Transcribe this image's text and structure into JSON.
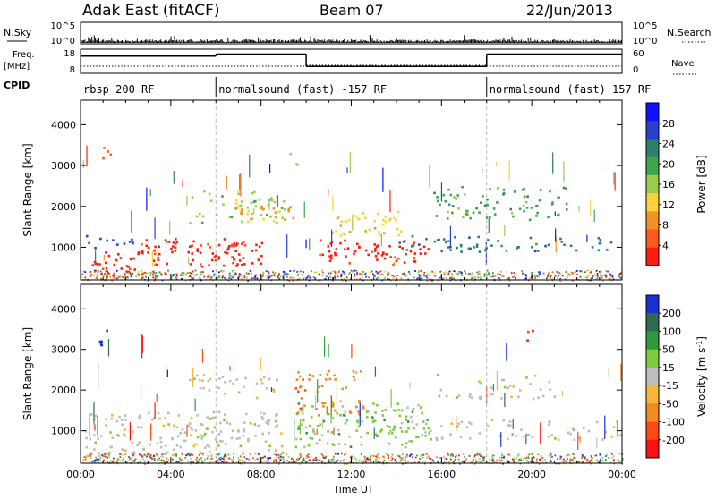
{
  "header": {
    "title": "Adak East (fitACF)",
    "beam": "Beam 07",
    "date": "22/Jun/2013"
  },
  "nsky_panel": {
    "label": "N.Sky",
    "right_label": "N.Search",
    "ticks_left": [
      "10^5",
      "10^0"
    ],
    "ticks_right": [
      "10^5",
      "10^0"
    ]
  },
  "freq_panel": {
    "label_line1": "Freq.",
    "label_line2": "[MHz]",
    "right_label": "Nave",
    "ticks_left": [
      "18",
      "8"
    ],
    "ticks_right": [
      "60",
      "0"
    ],
    "segments": [
      {
        "start": 0,
        "end": 6,
        "level": 0.75
      },
      {
        "start": 6,
        "end": 10,
        "level": 0.85
      },
      {
        "start": 10,
        "end": 18,
        "level": 0.25
      },
      {
        "start": 18,
        "end": 24,
        "level": 0.85
      }
    ]
  },
  "cpid": {
    "label": "CPID",
    "segments": [
      {
        "start": 0,
        "label": "rbsp 200 RF"
      },
      {
        "start": 6,
        "label": "normalsound (fast) -157 RF"
      },
      {
        "start": 18,
        "label": "normalsound (fast) 157 RF"
      }
    ]
  },
  "chart_data": [
    {
      "type": "heatmap",
      "ylabel": "Slant Range [km]",
      "yticks": [
        "1000",
        "2000",
        "3000",
        "4000"
      ],
      "ylim": [
        200,
        4600
      ],
      "xlim_hours": [
        0,
        24
      ],
      "colorbar_label": "Power [dB]",
      "colorbar_ticks": [
        "4",
        "8",
        "12",
        "16",
        "20",
        "24",
        "28"
      ],
      "colorbar_colors": [
        "#1010ff",
        "#2a3fd0",
        "#2f7f6f",
        "#3fa54a",
        "#9ccc4f",
        "#ffd23a",
        "#f39224",
        "#ff5a1a",
        "#ff1c10"
      ]
    },
    {
      "type": "heatmap",
      "ylabel": "Slant Range [km]",
      "yticks": [
        "1000",
        "2000",
        "3000",
        "4000"
      ],
      "ylim": [
        200,
        4600
      ],
      "xlim_hours": [
        0,
        24
      ],
      "xlabel": "Time UT",
      "xticks": [
        "00:00",
        "04:00",
        "08:00",
        "12:00",
        "16:00",
        "20:00",
        "00:00"
      ],
      "colorbar_label": "Velocity [m s",
      "colorbar_label_sup": "-1",
      "colorbar_label_end": "]",
      "colorbar_ticks": [
        "200",
        "100",
        "50",
        "15",
        "-15",
        "-50",
        "-100",
        "-200"
      ],
      "colorbar_colors": [
        "#1a2fd4",
        "#2e6b50",
        "#2f9a3d",
        "#7ccc3e",
        "#bdbdbd",
        "#f6b63a",
        "#f18a22",
        "#ff4a12",
        "#ff1010"
      ]
    }
  ]
}
